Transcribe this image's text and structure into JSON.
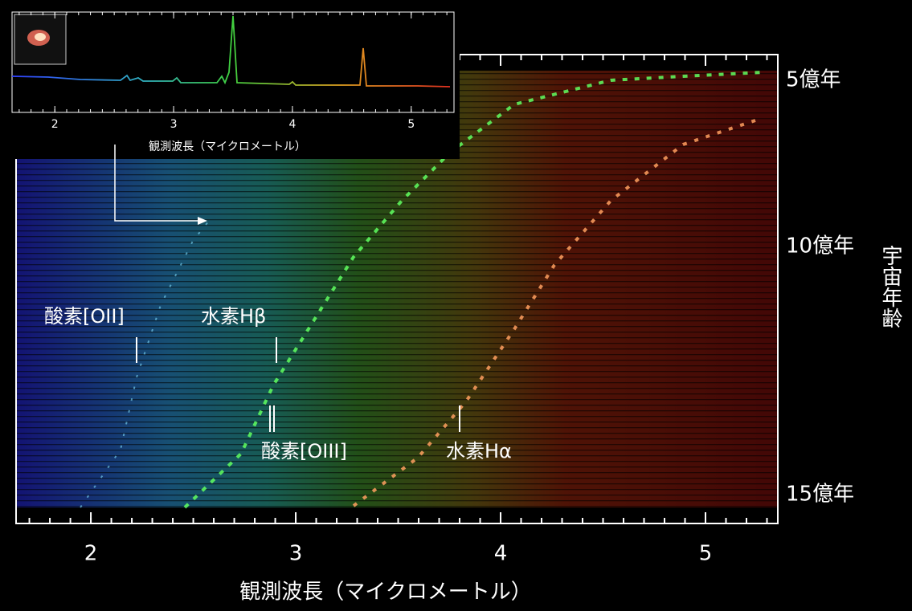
{
  "main": {
    "xlim": [
      1.635,
      5.353
    ],
    "xticks": [
      2,
      3,
      4,
      5
    ],
    "xlabel": "観測波長（マイクロメートル）",
    "age_labels": [
      "5億年",
      "10億年",
      "15億年"
    ],
    "ylabel": "宇宙年齢",
    "annotations": [
      "酸素[OII]",
      "水素Hβ",
      "酸素[OIII]",
      "水素Hα"
    ]
  },
  "inset": {
    "xlim": [
      1.64,
      5.36
    ],
    "xticks": [
      2,
      3,
      4,
      5
    ],
    "xlabel": "観測波長（マイクロメートル）"
  }
}
